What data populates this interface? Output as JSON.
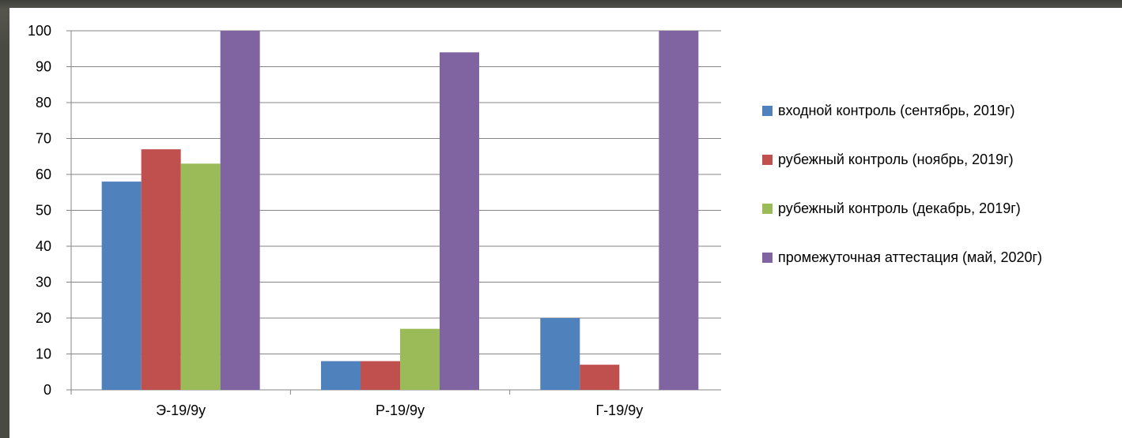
{
  "chart_data": {
    "type": "bar",
    "categories": [
      "Э-19/9у",
      "Р-19/9у",
      "Г-19/9у"
    ],
    "series": [
      {
        "name": "входной контроль (сентябрь, 2019г)",
        "color": "#4F81BD",
        "values": [
          58,
          8,
          20
        ]
      },
      {
        "name": "рубежный контроль (ноябрь, 2019г)",
        "color": "#C0504D",
        "values": [
          67,
          8,
          7
        ]
      },
      {
        "name": "рубежный контроль (декабрь, 2019г)",
        "color": "#9BBB59",
        "values": [
          63,
          17,
          0
        ]
      },
      {
        "name": "промежуточная аттестация (май, 2020г)",
        "color": "#8064A2",
        "values": [
          100,
          94,
          100
        ]
      }
    ],
    "yticks": [
      0,
      10,
      20,
      30,
      40,
      50,
      60,
      70,
      80,
      90,
      100
    ],
    "ylim": [
      0,
      100
    ],
    "grid": true,
    "legend_position": "right",
    "title": "",
    "xlabel": "",
    "ylabel": ""
  }
}
